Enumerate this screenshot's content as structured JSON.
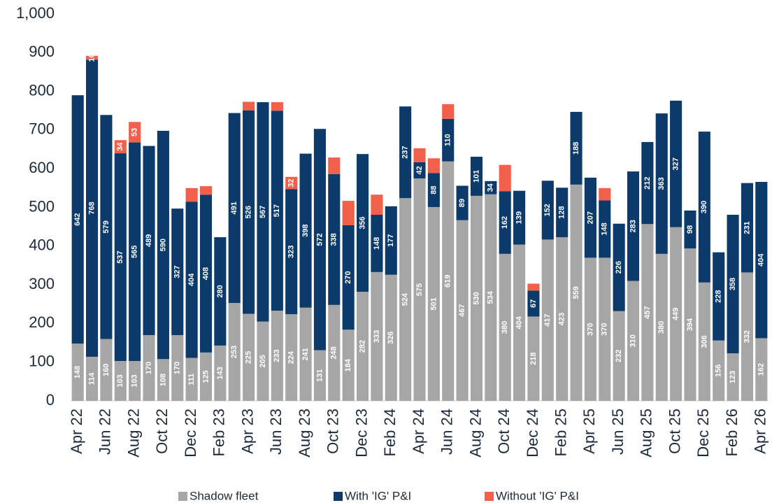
{
  "chart_data": {
    "type": "stacked_bar",
    "categories": [
      "Apr 22",
      null,
      "Jun 22",
      null,
      "Aug 22",
      null,
      "Oct 22",
      null,
      "Dec 22",
      null,
      "Feb 23",
      null,
      "Apr 23",
      null,
      "Jun 23",
      null,
      "Aug 23",
      null,
      "Oct 23",
      null,
      "Dec 23",
      null,
      "Feb 24",
      null,
      "Apr 24",
      null,
      "Jun 24",
      null,
      "Aug 24",
      null,
      "Oct 24",
      null,
      "Dec 24",
      null,
      "Feb 25",
      null,
      "Apr 25",
      null,
      "Jun 25",
      null,
      "Aug 25",
      null,
      "Oct 25",
      null,
      "Dec 25",
      null,
      "Feb 26",
      null,
      "Apr 26"
    ],
    "series": [
      {
        "name": "Shadow fleet",
        "color": "#a6a6a6",
        "values": [
          148,
          114,
          160,
          103,
          103,
          170,
          108,
          170,
          111,
          125,
          143,
          253,
          225,
          205,
          233,
          224,
          241,
          131,
          248,
          184,
          282,
          333,
          326,
          524,
          575,
          501,
          619,
          467,
          530,
          534,
          380,
          404,
          218,
          417,
          423,
          559,
          370,
          370,
          232,
          310,
          457,
          380,
          449,
          394,
          306,
          156,
          123,
          332,
          162
        ]
      },
      {
        "name": "With 'IG' P&I",
        "color": "#0b3a6b",
        "values": [
          642,
          768,
          579,
          537,
          565,
          489,
          590,
          327,
          404,
          408,
          280,
          491,
          526,
          567,
          517,
          323,
          398,
          572,
          338,
          270,
          356,
          148,
          177,
          237,
          42,
          88,
          110,
          89,
          101,
          34,
          162,
          139,
          67,
          152,
          128,
          188,
          207,
          148,
          226,
          283,
          212,
          363,
          327,
          98,
          390,
          228,
          358,
          231,
          404
        ]
      },
      {
        "name": "Without 'IG' P&I",
        "color": "#f0604a",
        "values": [
          0,
          10,
          0,
          34,
          53,
          0,
          0,
          0,
          35,
          22,
          0,
          0,
          22,
          0,
          22,
          32,
          0,
          0,
          43,
          63,
          0,
          52,
          0,
          0,
          36,
          38,
          38,
          0,
          0,
          0,
          68,
          0,
          18,
          0,
          0,
          0,
          0,
          32,
          0,
          0,
          0,
          0,
          0,
          0,
          0,
          0,
          0,
          0,
          0
        ],
        "value_labels": [
          null,
          "10",
          null,
          "34",
          "53",
          null,
          null,
          null,
          null,
          null,
          null,
          null,
          null,
          null,
          null,
          "32",
          null,
          null,
          null,
          null,
          null,
          null,
          null,
          null,
          null,
          null,
          null,
          null,
          null,
          null,
          null,
          null,
          null,
          null,
          null,
          null,
          null,
          null,
          null,
          null,
          null,
          null,
          null,
          null,
          null,
          null,
          null,
          null,
          null
        ]
      }
    ],
    "ylim": [
      0,
      1000
    ],
    "yticks": [
      0,
      100,
      200,
      300,
      400,
      500,
      600,
      700,
      800,
      900,
      {
        "value": 1000,
        "label": "1,000"
      }
    ],
    "legend": "bottom"
  }
}
